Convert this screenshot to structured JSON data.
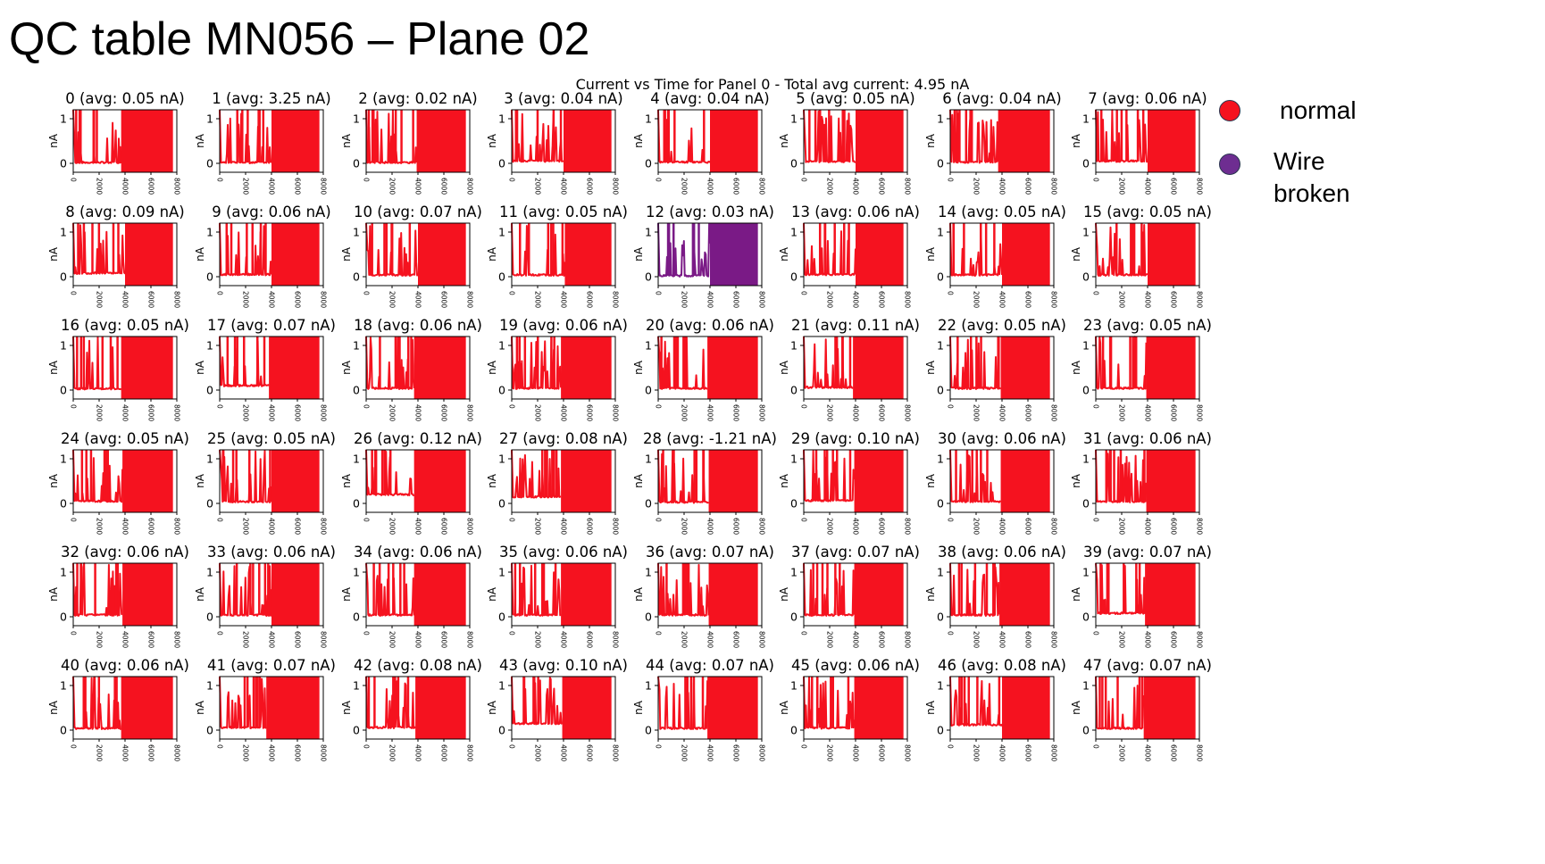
{
  "slide_title": "QC table MN056 – Plane 02",
  "chart_data": {
    "type": "line",
    "title": "Current vs Time for Panel 0 - Total avg current: 4.95 nA",
    "ylabel": "nA",
    "xlabel": "",
    "xlim": [
      0,
      8000
    ],
    "ylim": [
      -0.2,
      1.2
    ],
    "xticks": [
      "0",
      "2000",
      "4000",
      "6000",
      "8000"
    ],
    "yticks": [
      "0",
      "1"
    ],
    "legend": {
      "placement": "right",
      "entries": [
        {
          "label": "normal",
          "color": "#f5121f"
        },
        {
          "label": "Wire\nbroken",
          "color": "#6e2d91"
        }
      ]
    },
    "colors": {
      "normal": "#f5121f",
      "broken": "#7a1a86"
    },
    "panels": [
      {
        "title": "0 (avg: 0.05 nA)",
        "status": "normal",
        "baseline": 0.02,
        "saturation_start": 3700
      },
      {
        "title": "1 (avg: 3.25 nA)",
        "status": "normal",
        "baseline": 0.02,
        "saturation_start": 4000
      },
      {
        "title": "2 (avg: 0.02 nA)",
        "status": "normal",
        "baseline": 0.02,
        "saturation_start": 3900
      },
      {
        "title": "3 (avg: 0.04 nA)",
        "status": "normal",
        "baseline": 0.05,
        "saturation_start": 4000
      },
      {
        "title": "4 (avg: 0.04 nA)",
        "status": "normal",
        "baseline": 0.03,
        "saturation_start": 4000
      },
      {
        "title": "5 (avg: 0.05 nA)",
        "status": "normal",
        "baseline": 0.04,
        "saturation_start": 4000
      },
      {
        "title": "6 (avg: 0.04 nA)",
        "status": "normal",
        "baseline": 0.03,
        "saturation_start": 3700
      },
      {
        "title": "7 (avg: 0.06 nA)",
        "status": "normal",
        "baseline": 0.05,
        "saturation_start": 4000
      },
      {
        "title": "8 (avg: 0.09 nA)",
        "status": "normal",
        "baseline": 0.08,
        "saturation_start": 4000
      },
      {
        "title": "9 (avg: 0.06 nA)",
        "status": "normal",
        "baseline": 0.05,
        "saturation_start": 4000
      },
      {
        "title": "10 (avg: 0.07 nA)",
        "status": "normal",
        "baseline": 0.04,
        "saturation_start": 4000
      },
      {
        "title": "11 (avg: 0.05 nA)",
        "status": "normal",
        "baseline": 0.04,
        "saturation_start": 4100
      },
      {
        "title": "12 (avg: 0.03 nA)",
        "status": "broken",
        "baseline": 0.02,
        "saturation_start": 4000
      },
      {
        "title": "13 (avg: 0.06 nA)",
        "status": "normal",
        "baseline": 0.05,
        "saturation_start": 4000
      },
      {
        "title": "14 (avg: 0.05 nA)",
        "status": "normal",
        "baseline": 0.04,
        "saturation_start": 4000
      },
      {
        "title": "15 (avg: 0.05 nA)",
        "status": "normal",
        "baseline": 0.04,
        "saturation_start": 4000
      },
      {
        "title": "16 (avg: 0.05 nA)",
        "status": "normal",
        "baseline": 0.03,
        "saturation_start": 3700
      },
      {
        "title": "17 (avg: 0.07 nA)",
        "status": "normal",
        "baseline": 0.1,
        "saturation_start": 3800
      },
      {
        "title": "18 (avg: 0.06 nA)",
        "status": "normal",
        "baseline": 0.04,
        "saturation_start": 3700
      },
      {
        "title": "19 (avg: 0.06 nA)",
        "status": "normal",
        "baseline": 0.04,
        "saturation_start": 3800
      },
      {
        "title": "20 (avg: 0.06 nA)",
        "status": "normal",
        "baseline": 0.04,
        "saturation_start": 3800
      },
      {
        "title": "21 (avg: 0.11 nA)",
        "status": "normal",
        "baseline": 0.06,
        "saturation_start": 3800
      },
      {
        "title": "22 (avg: 0.05 nA)",
        "status": "normal",
        "baseline": 0.04,
        "saturation_start": 3900
      },
      {
        "title": "23 (avg: 0.05 nA)",
        "status": "normal",
        "baseline": 0.04,
        "saturation_start": 3900
      },
      {
        "title": "24 (avg: 0.05 nA)",
        "status": "normal",
        "baseline": 0.05,
        "saturation_start": 3800
      },
      {
        "title": "25 (avg: 0.05 nA)",
        "status": "normal",
        "baseline": 0.04,
        "saturation_start": 4000
      },
      {
        "title": "26 (avg: 0.12 nA)",
        "status": "normal",
        "baseline": 0.2,
        "saturation_start": 3700
      },
      {
        "title": "27 (avg: 0.08 nA)",
        "status": "normal",
        "baseline": 0.15,
        "saturation_start": 3800
      },
      {
        "title": "28 (avg: -1.21 nA)",
        "status": "normal",
        "baseline": 0.03,
        "saturation_start": 3900
      },
      {
        "title": "29 (avg: 0.10 nA)",
        "status": "normal",
        "baseline": 0.06,
        "saturation_start": 3900
      },
      {
        "title": "30 (avg: 0.06 nA)",
        "status": "normal",
        "baseline": 0.04,
        "saturation_start": 3900
      },
      {
        "title": "31 (avg: 0.06 nA)",
        "status": "normal",
        "baseline": 0.04,
        "saturation_start": 3900
      },
      {
        "title": "32 (avg: 0.06 nA)",
        "status": "normal",
        "baseline": 0.04,
        "saturation_start": 3800
      },
      {
        "title": "33 (avg: 0.06 nA)",
        "status": "normal",
        "baseline": 0.04,
        "saturation_start": 4000
      },
      {
        "title": "34 (avg: 0.06 nA)",
        "status": "normal",
        "baseline": 0.04,
        "saturation_start": 3700
      },
      {
        "title": "35 (avg: 0.06 nA)",
        "status": "normal",
        "baseline": 0.04,
        "saturation_start": 3800
      },
      {
        "title": "36 (avg: 0.07 nA)",
        "status": "normal",
        "baseline": 0.04,
        "saturation_start": 3900
      },
      {
        "title": "37 (avg: 0.07 nA)",
        "status": "normal",
        "baseline": 0.04,
        "saturation_start": 3900
      },
      {
        "title": "38 (avg: 0.06 nA)",
        "status": "normal",
        "baseline": 0.04,
        "saturation_start": 3800
      },
      {
        "title": "39 (avg: 0.07 nA)",
        "status": "normal",
        "baseline": 0.08,
        "saturation_start": 3800
      },
      {
        "title": "40 (avg: 0.06 nA)",
        "status": "normal",
        "baseline": 0.04,
        "saturation_start": 3700
      },
      {
        "title": "41 (avg: 0.07 nA)",
        "status": "normal",
        "baseline": 0.06,
        "saturation_start": 3600
      },
      {
        "title": "42 (avg: 0.08 nA)",
        "status": "normal",
        "baseline": 0.06,
        "saturation_start": 3800
      },
      {
        "title": "43 (avg: 0.10 nA)",
        "status": "normal",
        "baseline": 0.15,
        "saturation_start": 3900
      },
      {
        "title": "44 (avg: 0.07 nA)",
        "status": "normal",
        "baseline": 0.04,
        "saturation_start": 3800
      },
      {
        "title": "45 (avg: 0.06 nA)",
        "status": "normal",
        "baseline": 0.05,
        "saturation_start": 3900
      },
      {
        "title": "46 (avg: 0.08 nA)",
        "status": "normal",
        "baseline": 0.12,
        "saturation_start": 4000
      },
      {
        "title": "47 (avg: 0.07 nA)",
        "status": "normal",
        "baseline": 0.04,
        "saturation_start": 3700
      }
    ]
  }
}
